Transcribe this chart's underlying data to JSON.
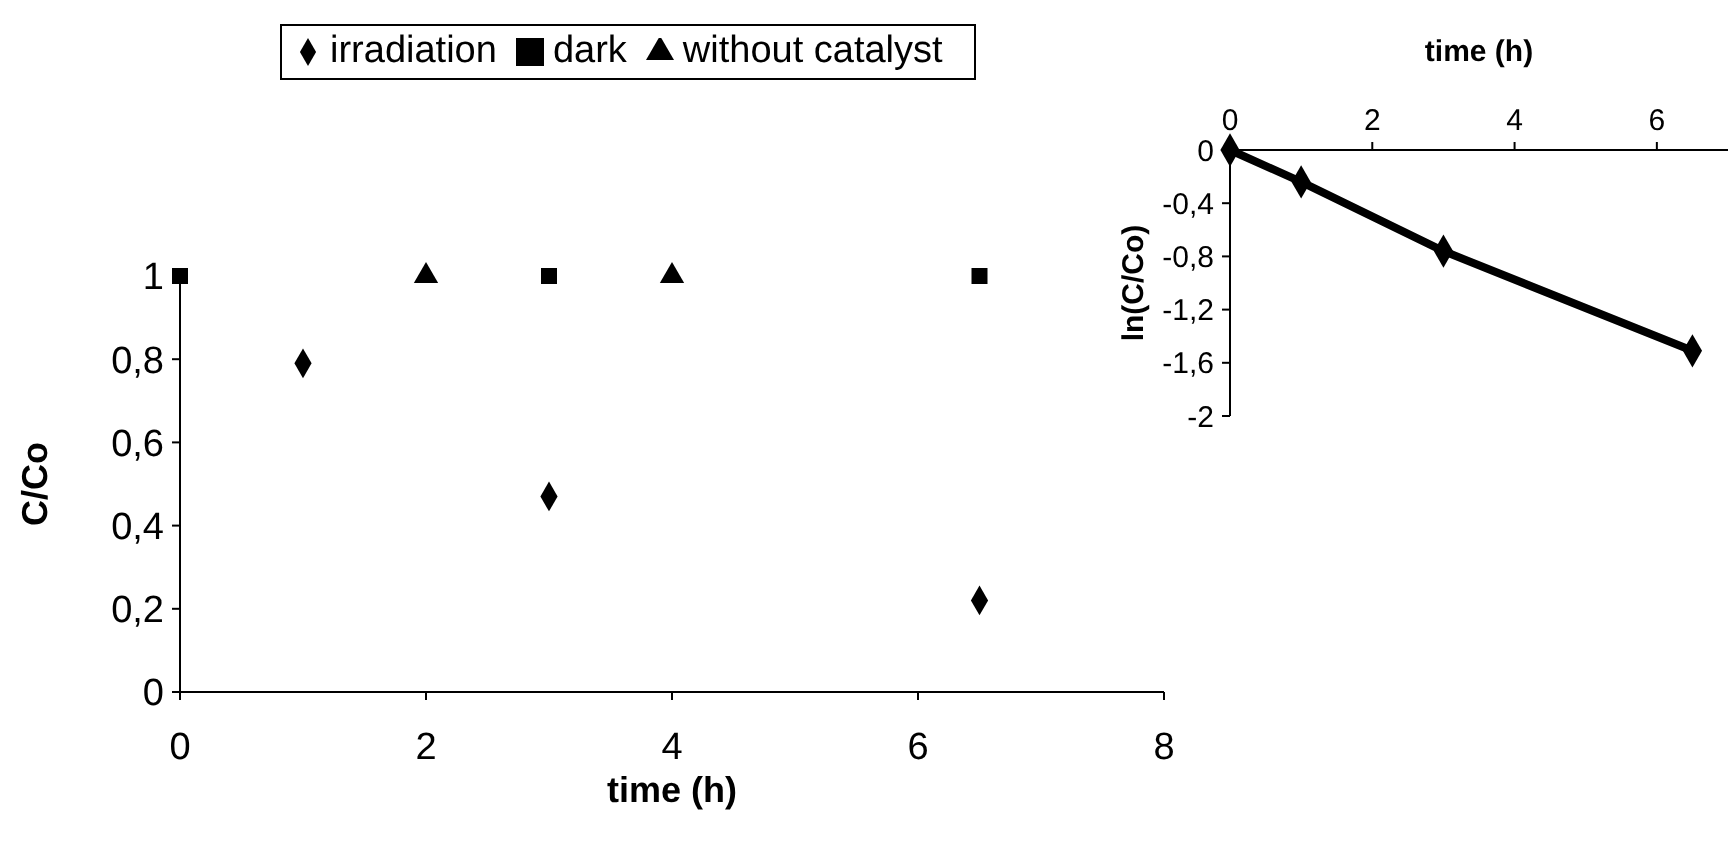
{
  "chart_data": [
    {
      "type": "scatter",
      "xlabel": "time (h)",
      "ylabel": "C/Co",
      "xlim": [
        0,
        8
      ],
      "xticks": [
        {
          "value": 0,
          "label": "0"
        },
        2,
        4,
        6,
        8
      ],
      "ylim": [
        0,
        1
      ],
      "yticks": [
        {
          "value": 0,
          "label": "0"
        },
        {
          "value": 0.2,
          "label": "0,2"
        },
        {
          "value": 0.4,
          "label": "0,4"
        },
        {
          "value": 0.6,
          "label": "0,6"
        },
        {
          "value": 0.8,
          "label": "0,8"
        },
        1
      ],
      "grid": false,
      "legend": "top",
      "series": [
        {
          "name": "irradiation",
          "color": "#000000",
          "marker": "diamond",
          "x": [
            1,
            3,
            6.5
          ],
          "values": [
            0.79,
            0.47,
            0.22
          ]
        },
        {
          "name": "dark",
          "color": "#000000",
          "marker": "square",
          "x": [
            0,
            3,
            6.5
          ],
          "values": [
            1,
            1,
            1
          ]
        },
        {
          "name": "without catalyst",
          "color": "#000000",
          "marker": "triangle",
          "x": [
            2,
            4
          ],
          "values": [
            1,
            1
          ]
        }
      ]
    },
    {
      "type": "line",
      "xlabel": "time (h)",
      "ylabel": "ln(C/Co)",
      "xlim": [
        0,
        7
      ],
      "xticks": [
        {
          "value": 0,
          "label": "0"
        },
        2,
        4,
        6
      ],
      "ylim": [
        -2,
        0
      ],
      "yticks": [
        {
          "value": -2,
          "label": "-2"
        },
        {
          "value": -1.6,
          "label": "-1,6"
        },
        {
          "value": -1.2,
          "label": "-1,2"
        },
        {
          "value": -0.8,
          "label": "-0,8"
        },
        {
          "value": -0.4,
          "label": "-0,4"
        },
        {
          "value": 0,
          "label": "0"
        }
      ],
      "grid": false,
      "legend": false,
      "marker": "diamond",
      "line_style": "solid",
      "series": [
        {
          "color": "#000000",
          "x": [
            0,
            1,
            3,
            6.5
          ],
          "values": [
            0,
            -0.24,
            -0.76,
            -1.51
          ]
        }
      ]
    }
  ]
}
